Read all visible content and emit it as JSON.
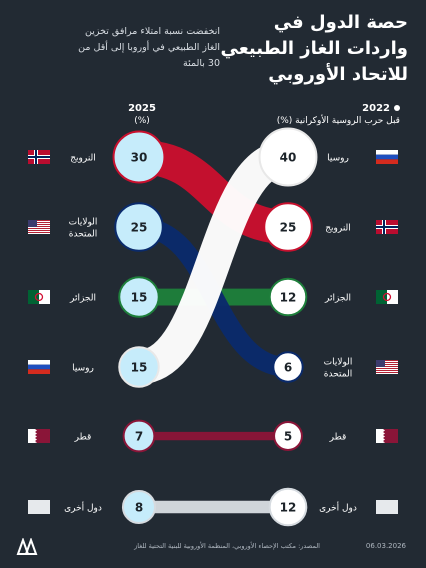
{
  "title": "حصة الدول في واردات الغاز الطبيعي للاتحاد الأوروبي",
  "subtitle": "انخفضت نسبة امتلاء مرافق تخزين الغاز الطبيعي في أوروبا إلى أقل من 30 بالمئة",
  "header_2022": {
    "year": "2022",
    "note": "قبل حرب الروسية الأوكرانية (%)"
  },
  "header_2025": {
    "year": "2025",
    "note": "(%)"
  },
  "footer": {
    "source": "المصدر: مكتب الإحصاء الأوروبي، المنظمة الأوروبية للبنية التحتية للغاز",
    "date": "06.03.2026",
    "logo": "AA"
  },
  "colors": {
    "background": "#222a33",
    "russia": "#ffffff",
    "norway": "#c8102e",
    "usa": "#0a2a6b",
    "algeria": "#1e7f3b",
    "qatar": "#8a1538",
    "other": "#d6dbe0",
    "circle_2025": "#c6ecfb",
    "circle_2022": "#ffffff"
  },
  "chart_data": {
    "type": "slope",
    "columns": [
      "2022",
      "2025"
    ],
    "series": [
      {
        "name": "روسيا",
        "value_2022": 40,
        "value_2025": 15,
        "color": "#ffffff"
      },
      {
        "name": "النرويج",
        "value_2022": 25,
        "value_2025": 30,
        "color": "#c8102e"
      },
      {
        "name": "الجزائر",
        "value_2022": 12,
        "value_2025": 15,
        "color": "#1e7f3b"
      },
      {
        "name": "الولايات المتحدة",
        "value_2022": 6,
        "value_2025": 25,
        "color": "#0a2a6b"
      },
      {
        "name": "قطر",
        "value_2022": 5,
        "value_2025": 7,
        "color": "#8a1538"
      },
      {
        "name": "دول أخرى",
        "value_2022": 12,
        "value_2025": 8,
        "color": "#d6dbe0"
      }
    ],
    "labels_2022": [
      "روسيا",
      "النرويج",
      "الجزائر",
      "الولايات المتحدة",
      "قطر",
      "دول أخرى"
    ],
    "labels_2025": [
      "النرويج",
      "الولايات المتحدة",
      "الجزائر",
      "روسيا",
      "قطر",
      "دول أخرى"
    ],
    "flags_2022": [
      "russia-flag",
      "norway-flag",
      "algeria-flag",
      "usa-flag",
      "qatar-flag",
      "other-flag"
    ],
    "flags_2025": [
      "norway-flag",
      "usa-flag",
      "algeria-flag",
      "russia-flag",
      "qatar-flag",
      "other-flag"
    ]
  }
}
